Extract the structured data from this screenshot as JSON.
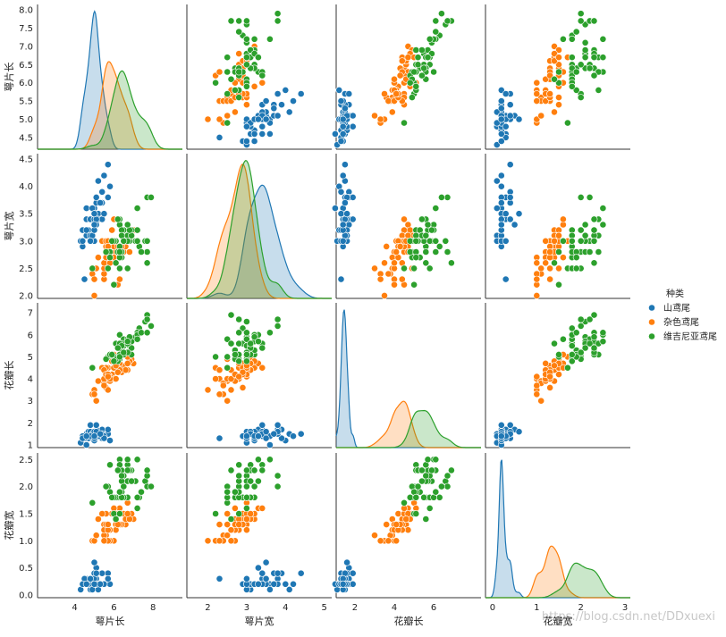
{
  "chart_data": {
    "type": "pairplot",
    "variables": [
      "萼片长",
      "萼片宽",
      "花瓣长",
      "花瓣宽"
    ],
    "legend_title": "种类",
    "watermark": "https://blog.csdn.net/DDxuexi",
    "axes": [
      {
        "xlim": [
          2.1,
          9.5
        ],
        "xticks": [
          4,
          6,
          8
        ],
        "ylim": [
          4.18,
          8.15
        ],
        "yticks": [
          4.5,
          {
            "value": 5,
            "label": "5.0"
          },
          5.5,
          {
            "value": 6,
            "label": "6.0"
          },
          6.5,
          {
            "value": 7,
            "label": "7.0"
          },
          7.5,
          {
            "value": 8,
            "label": "8.0"
          }
        ]
      },
      {
        "xlim": [
          1.46,
          5.19
        ],
        "xticks": [
          2,
          3,
          4,
          5
        ],
        "ylim": [
          1.95,
          4.6
        ],
        "yticks": [
          {
            "value": 2,
            "label": "2.0"
          },
          2.5,
          {
            "value": 3,
            "label": "3.0"
          },
          3.5,
          {
            "value": 4,
            "label": "4.0"
          },
          4.5
        ]
      },
      {
        "xlim": [
          1.05,
          8.4
        ],
        "xticks": [
          2,
          4,
          6
        ],
        "ylim": [
          0.88,
          7.45
        ],
        "yticks": [
          1,
          2,
          3,
          4,
          5,
          6,
          7
        ]
      },
      {
        "xlim": [
          -0.16,
          3.12
        ],
        "xticks": [
          0,
          1,
          2,
          3
        ],
        "ylim": [
          -0.05,
          2.62
        ],
        "yticks": [
          {
            "value": 0,
            "label": "0.0"
          },
          0.5,
          {
            "value": 1,
            "label": "1.0"
          },
          1.5,
          {
            "value": 2,
            "label": "2.0"
          },
          2.5
        ]
      }
    ],
    "series": [
      {
        "name": "山鸢尾",
        "color": "#1f77b4",
        "values": [
          [
            5.1,
            4.9,
            4.7,
            4.6,
            5.0,
            5.4,
            4.6,
            5.0,
            4.4,
            4.9,
            5.4,
            4.8,
            4.8,
            4.3,
            5.8,
            5.7,
            5.4,
            5.1,
            5.7,
            5.1,
            5.4,
            5.1,
            4.6,
            5.1,
            4.8,
            5.0,
            5.0,
            5.2,
            5.2,
            4.7,
            4.8,
            5.4,
            5.2,
            5.5,
            4.9,
            5.0,
            5.5,
            4.9,
            4.4,
            5.1,
            5.0,
            4.5,
            4.4,
            5.0,
            5.1,
            4.8,
            5.1,
            4.6,
            5.3,
            5.0
          ],
          [
            3.5,
            3.0,
            3.2,
            3.1,
            3.6,
            3.9,
            3.4,
            3.4,
            2.9,
            3.1,
            3.7,
            3.4,
            3.0,
            3.0,
            4.0,
            4.4,
            3.9,
            3.5,
            3.8,
            3.8,
            3.4,
            3.7,
            3.6,
            3.3,
            3.4,
            3.0,
            3.4,
            3.5,
            3.4,
            3.2,
            3.1,
            3.4,
            4.1,
            4.2,
            3.1,
            3.2,
            3.5,
            3.6,
            3.0,
            3.4,
            3.5,
            2.3,
            3.2,
            3.5,
            3.8,
            3.0,
            3.8,
            3.2,
            3.7,
            3.3
          ],
          [
            1.4,
            1.4,
            1.3,
            1.5,
            1.4,
            1.7,
            1.4,
            1.5,
            1.4,
            1.5,
            1.5,
            1.6,
            1.4,
            1.1,
            1.2,
            1.5,
            1.3,
            1.4,
            1.7,
            1.5,
            1.7,
            1.5,
            1.0,
            1.7,
            1.9,
            1.6,
            1.6,
            1.5,
            1.4,
            1.6,
            1.6,
            1.5,
            1.5,
            1.4,
            1.5,
            1.2,
            1.3,
            1.4,
            1.3,
            1.5,
            1.3,
            1.3,
            1.3,
            1.6,
            1.9,
            1.4,
            1.6,
            1.4,
            1.5,
            1.4
          ],
          [
            0.2,
            0.2,
            0.2,
            0.2,
            0.2,
            0.4,
            0.3,
            0.2,
            0.2,
            0.1,
            0.2,
            0.2,
            0.1,
            0.1,
            0.2,
            0.4,
            0.4,
            0.3,
            0.3,
            0.3,
            0.2,
            0.4,
            0.2,
            0.5,
            0.2,
            0.2,
            0.4,
            0.2,
            0.2,
            0.2,
            0.2,
            0.4,
            0.1,
            0.2,
            0.2,
            0.2,
            0.2,
            0.1,
            0.2,
            0.2,
            0.3,
            0.3,
            0.2,
            0.6,
            0.4,
            0.3,
            0.2,
            0.2,
            0.2,
            0.2
          ]
        ]
      },
      {
        "name": "杂色鸢尾",
        "color": "#ff7f0e",
        "values": [
          [
            7.0,
            6.4,
            6.9,
            5.5,
            6.5,
            5.7,
            6.3,
            4.9,
            6.6,
            5.2,
            5.0,
            5.9,
            6.0,
            6.1,
            5.6,
            6.7,
            5.6,
            5.8,
            6.2,
            5.6,
            5.9,
            6.1,
            6.3,
            6.1,
            6.4,
            6.6,
            6.8,
            6.7,
            6.0,
            5.7,
            5.5,
            5.5,
            5.8,
            6.0,
            5.4,
            6.0,
            6.7,
            6.3,
            5.6,
            5.5,
            5.5,
            6.1,
            5.8,
            5.0,
            5.6,
            5.7,
            5.7,
            6.2,
            5.1,
            5.7
          ],
          [
            3.2,
            3.2,
            3.1,
            2.3,
            2.8,
            2.8,
            3.3,
            2.4,
            2.9,
            2.7,
            2.0,
            3.0,
            2.2,
            2.9,
            2.9,
            3.1,
            3.0,
            2.7,
            2.2,
            2.5,
            3.2,
            2.8,
            2.5,
            2.8,
            2.9,
            3.0,
            2.8,
            3.0,
            2.9,
            2.6,
            2.4,
            2.4,
            2.7,
            2.7,
            3.0,
            3.4,
            3.1,
            2.3,
            3.0,
            2.5,
            2.6,
            3.0,
            2.6,
            2.3,
            2.7,
            3.0,
            2.9,
            2.9,
            2.5,
            2.8
          ],
          [
            4.7,
            4.5,
            4.9,
            4.0,
            4.6,
            4.5,
            4.7,
            3.3,
            4.6,
            3.9,
            3.5,
            4.2,
            4.0,
            4.7,
            3.6,
            4.4,
            4.5,
            4.1,
            4.5,
            3.9,
            4.8,
            4.0,
            4.9,
            4.7,
            4.3,
            4.4,
            4.8,
            5.0,
            4.5,
            3.5,
            3.8,
            3.7,
            3.9,
            5.1,
            4.5,
            4.5,
            4.7,
            4.4,
            4.1,
            4.0,
            4.4,
            4.6,
            4.0,
            3.3,
            4.2,
            4.2,
            4.2,
            4.3,
            3.0,
            4.1
          ],
          [
            1.4,
            1.5,
            1.5,
            1.3,
            1.5,
            1.3,
            1.6,
            1.0,
            1.3,
            1.4,
            1.0,
            1.5,
            1.0,
            1.4,
            1.3,
            1.4,
            1.5,
            1.0,
            1.5,
            1.1,
            1.8,
            1.3,
            1.5,
            1.2,
            1.3,
            1.4,
            1.4,
            1.7,
            1.5,
            1.0,
            1.1,
            1.0,
            1.2,
            1.6,
            1.5,
            1.6,
            1.5,
            1.3,
            1.3,
            1.3,
            1.2,
            1.4,
            1.2,
            1.0,
            1.3,
            1.2,
            1.3,
            1.3,
            1.1,
            1.3
          ]
        ]
      },
      {
        "name": "维吉尼亚鸢尾",
        "color": "#2ca02c",
        "values": [
          [
            6.3,
            5.8,
            7.1,
            6.3,
            6.5,
            7.6,
            4.9,
            7.3,
            6.7,
            7.2,
            6.5,
            6.4,
            6.8,
            5.7,
            5.8,
            6.4,
            6.5,
            7.7,
            7.7,
            6.0,
            6.9,
            5.6,
            7.7,
            6.3,
            6.7,
            7.2,
            6.2,
            6.1,
            6.4,
            7.2,
            7.4,
            7.9,
            6.4,
            6.3,
            6.1,
            7.7,
            6.3,
            6.4,
            6.0,
            6.9,
            6.7,
            6.9,
            5.8,
            6.8,
            6.7,
            6.7,
            6.3,
            6.5,
            6.2,
            5.9
          ],
          [
            3.3,
            2.7,
            3.0,
            2.9,
            3.0,
            3.0,
            2.5,
            2.9,
            2.5,
            3.6,
            3.2,
            2.7,
            3.0,
            2.5,
            2.8,
            3.2,
            3.0,
            3.8,
            2.6,
            2.2,
            3.2,
            2.8,
            2.8,
            2.7,
            3.3,
            3.2,
            2.8,
            3.0,
            2.8,
            3.0,
            2.8,
            3.8,
            2.8,
            2.8,
            2.6,
            3.0,
            3.4,
            3.1,
            3.0,
            3.1,
            3.1,
            3.1,
            2.7,
            3.2,
            3.3,
            3.0,
            2.5,
            3.0,
            3.4,
            3.0
          ],
          [
            6.0,
            5.1,
            5.9,
            5.6,
            5.8,
            6.6,
            4.5,
            6.3,
            5.8,
            6.1,
            5.1,
            5.3,
            5.5,
            5.0,
            5.1,
            5.3,
            5.5,
            6.7,
            6.9,
            5.0,
            5.7,
            4.9,
            6.7,
            4.9,
            5.7,
            6.0,
            4.8,
            4.9,
            5.6,
            5.8,
            6.1,
            6.4,
            5.6,
            5.1,
            5.6,
            6.1,
            5.6,
            5.5,
            4.8,
            5.4,
            5.6,
            5.1,
            5.1,
            5.9,
            5.7,
            5.2,
            5.0,
            5.2,
            5.4,
            5.1
          ],
          [
            2.5,
            1.9,
            2.1,
            1.8,
            2.2,
            2.1,
            1.7,
            1.8,
            1.8,
            2.5,
            2.0,
            1.9,
            2.1,
            2.0,
            2.4,
            2.3,
            1.8,
            2.2,
            2.3,
            1.5,
            2.3,
            2.0,
            2.0,
            1.8,
            2.1,
            1.8,
            1.8,
            1.8,
            2.1,
            1.6,
            1.9,
            2.0,
            2.2,
            1.5,
            1.4,
            2.3,
            2.4,
            1.8,
            1.8,
            2.1,
            2.4,
            2.3,
            1.9,
            2.3,
            2.5,
            2.3,
            1.9,
            2.0,
            2.3,
            1.8
          ]
        ]
      }
    ]
  }
}
